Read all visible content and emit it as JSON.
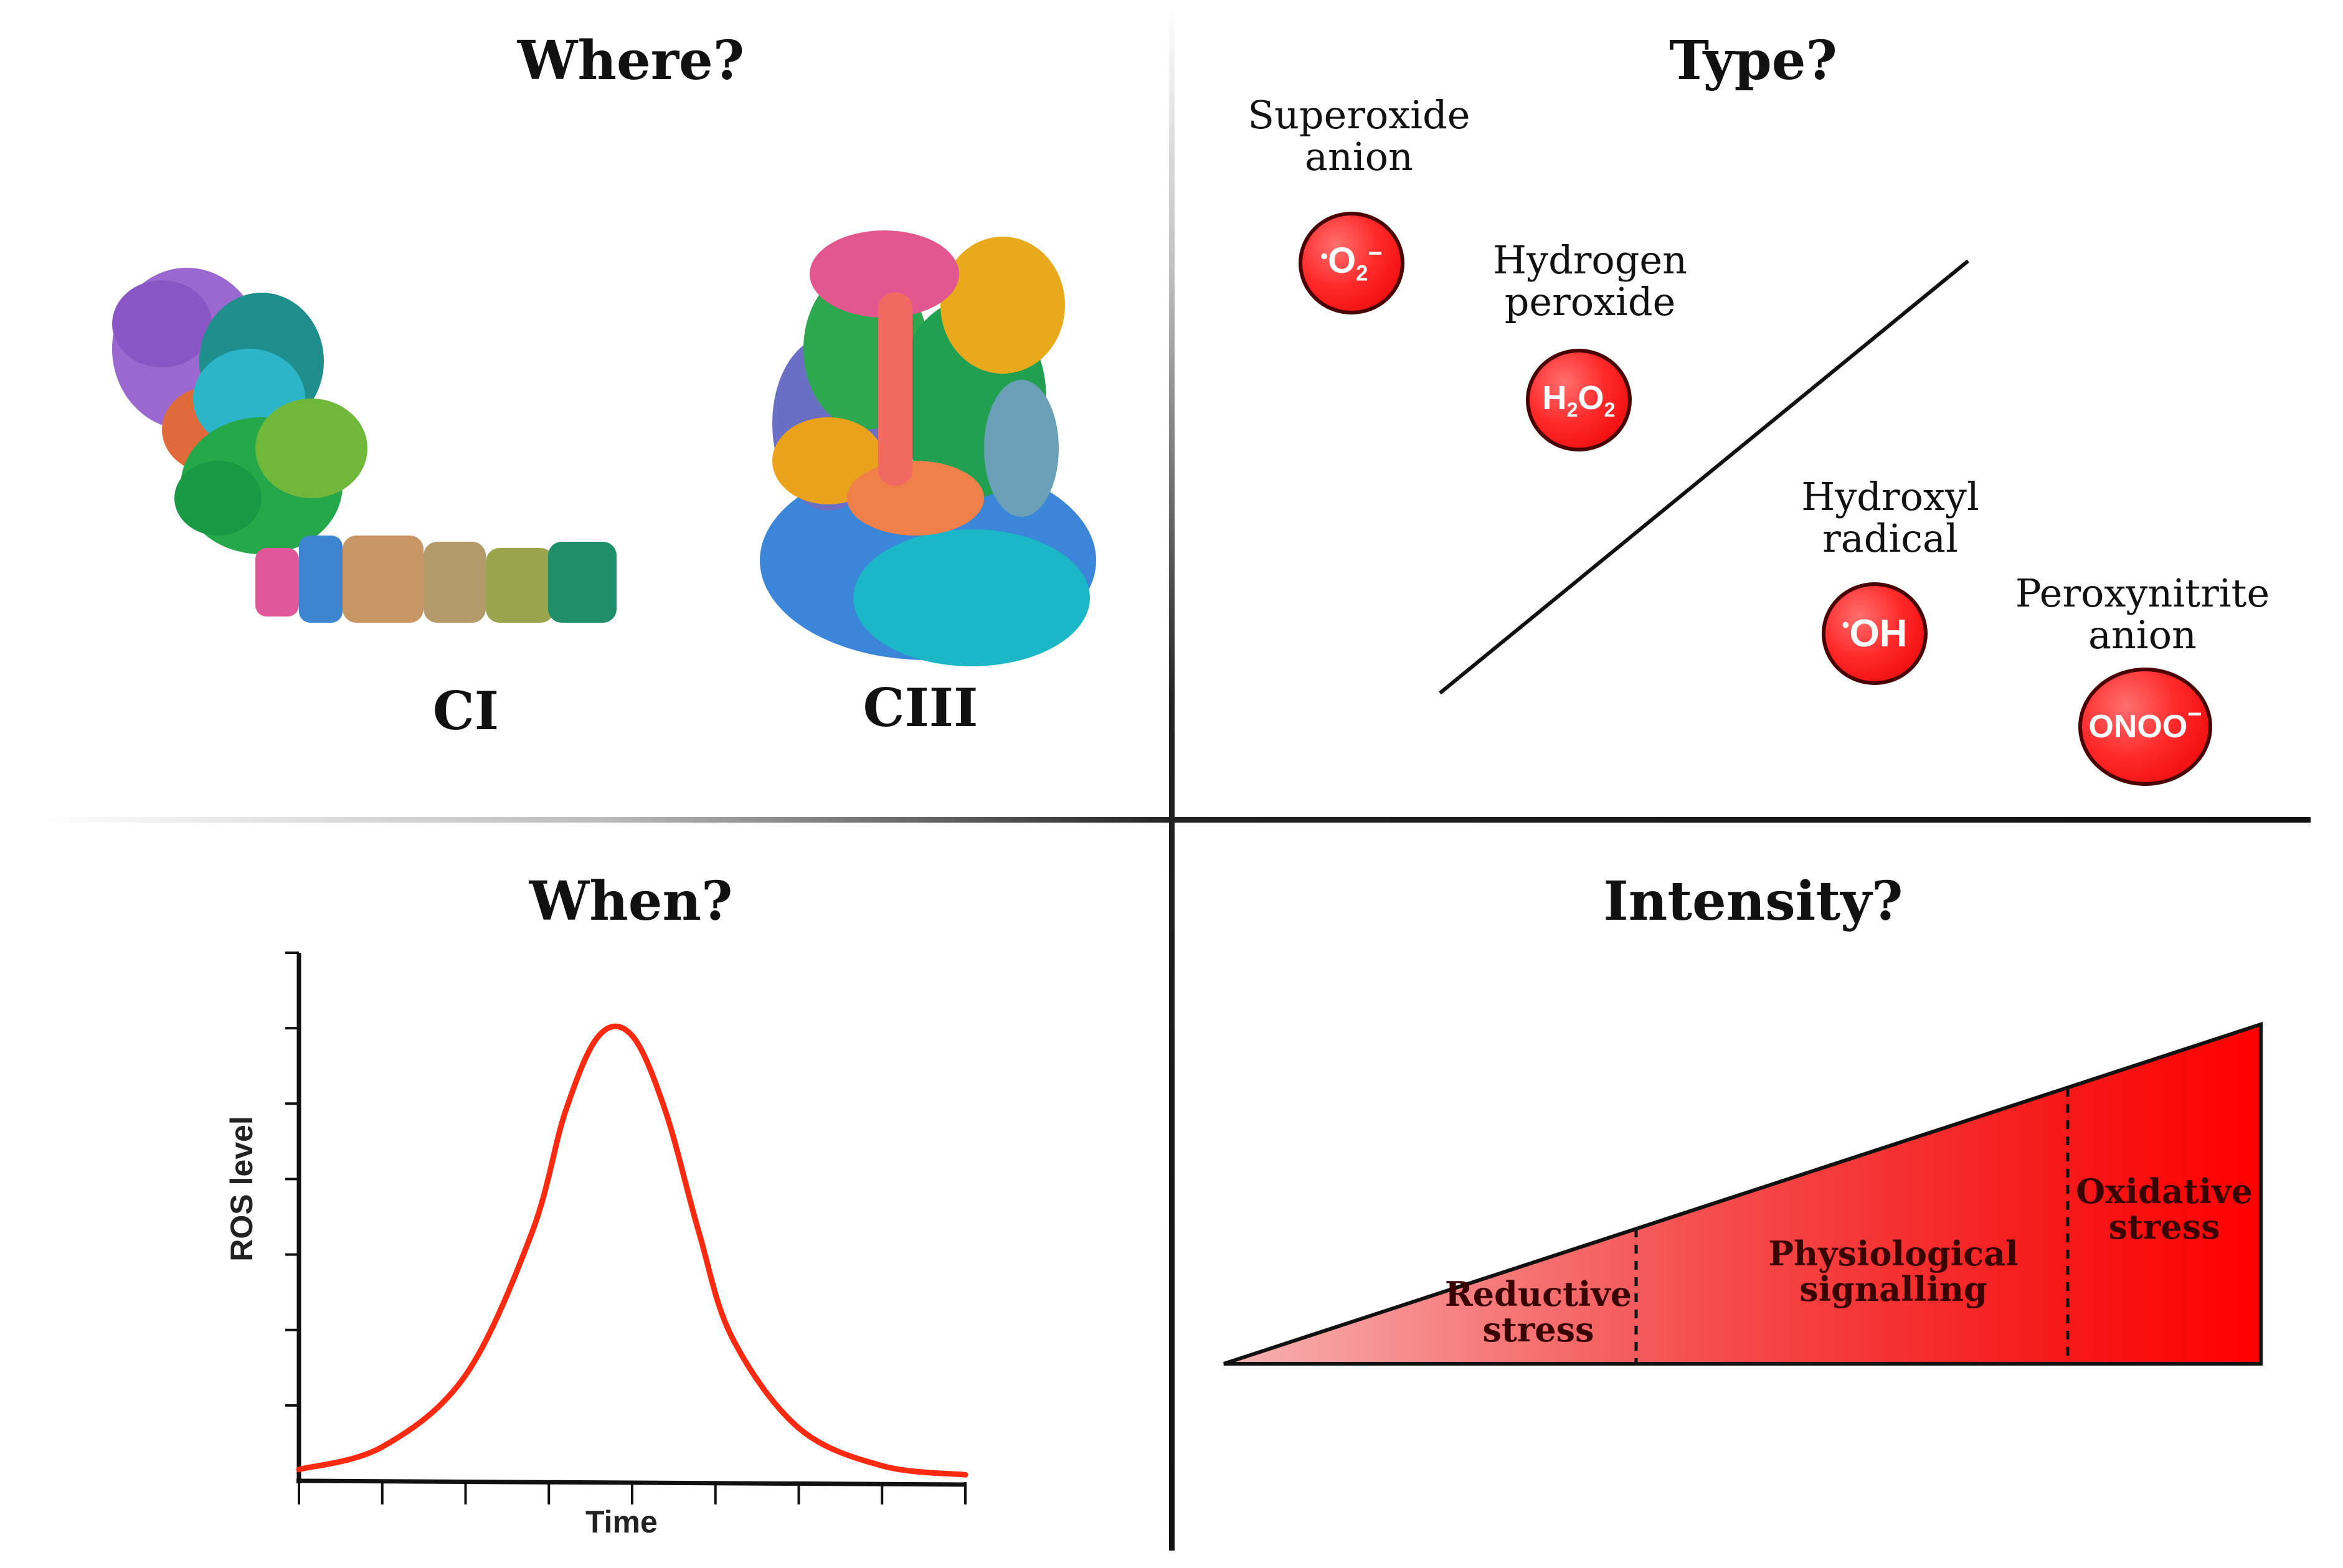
{
  "panels": {
    "where": {
      "title": "Where?",
      "complexes": [
        {
          "label": "CI"
        },
        {
          "label": "CIII"
        }
      ]
    },
    "type": {
      "title": "Type?",
      "species": [
        {
          "name": "Superoxide anion",
          "line1": "Superoxide",
          "line2": "anion",
          "formula": "O2",
          "radical_dot": "•",
          "charge": "−",
          "color": "#ff3b3b"
        },
        {
          "name": "Hydrogen peroxide",
          "line1": "Hydrogen",
          "line2": "peroxide",
          "formula": "H2O2",
          "color": "#ff2e2e"
        },
        {
          "name": "Hydroxyl radical",
          "line1": "Hydroxyl",
          "line2": "radical",
          "formula": "OH",
          "radical_dot": "•",
          "color": "#ff1a1a"
        },
        {
          "name": "Peroxynitrite anion",
          "line1": "Peroxynitrite",
          "line2": "anion",
          "formula": "ONOO",
          "charge": "−",
          "color": "#ee0000"
        }
      ]
    },
    "when": {
      "title": "When?",
      "chart_data": {
        "type": "line",
        "title": "When?",
        "xlabel": "Time",
        "ylabel": "ROS level",
        "x_ticks": 9,
        "y_ticks": 7,
        "xlim": [
          0,
          8
        ],
        "ylim": [
          0,
          7
        ],
        "series": [
          {
            "name": "ROS",
            "color": "#ff2a10",
            "x": [
              0,
              1,
              2,
              2.8,
              3.2,
              3.6,
              4.0,
              4.4,
              4.8,
              5.2,
              6,
              7,
              8
            ],
            "y": [
              0.15,
              0.45,
              1.4,
              3.3,
              4.9,
              5.9,
              5.9,
              4.9,
              3.3,
              1.9,
              0.7,
              0.2,
              0.08
            ]
          }
        ]
      }
    },
    "intensity": {
      "title": "Intensity?",
      "zones": [
        {
          "line1": "Reductive",
          "line2": "stress"
        },
        {
          "line1": "Physiological",
          "line2": "signalling"
        },
        {
          "line1": "Oxidative",
          "line2": "stress"
        }
      ],
      "colors": {
        "start": "#f6b3b3",
        "mid": "#f03030",
        "end": "#ff0000"
      }
    }
  }
}
